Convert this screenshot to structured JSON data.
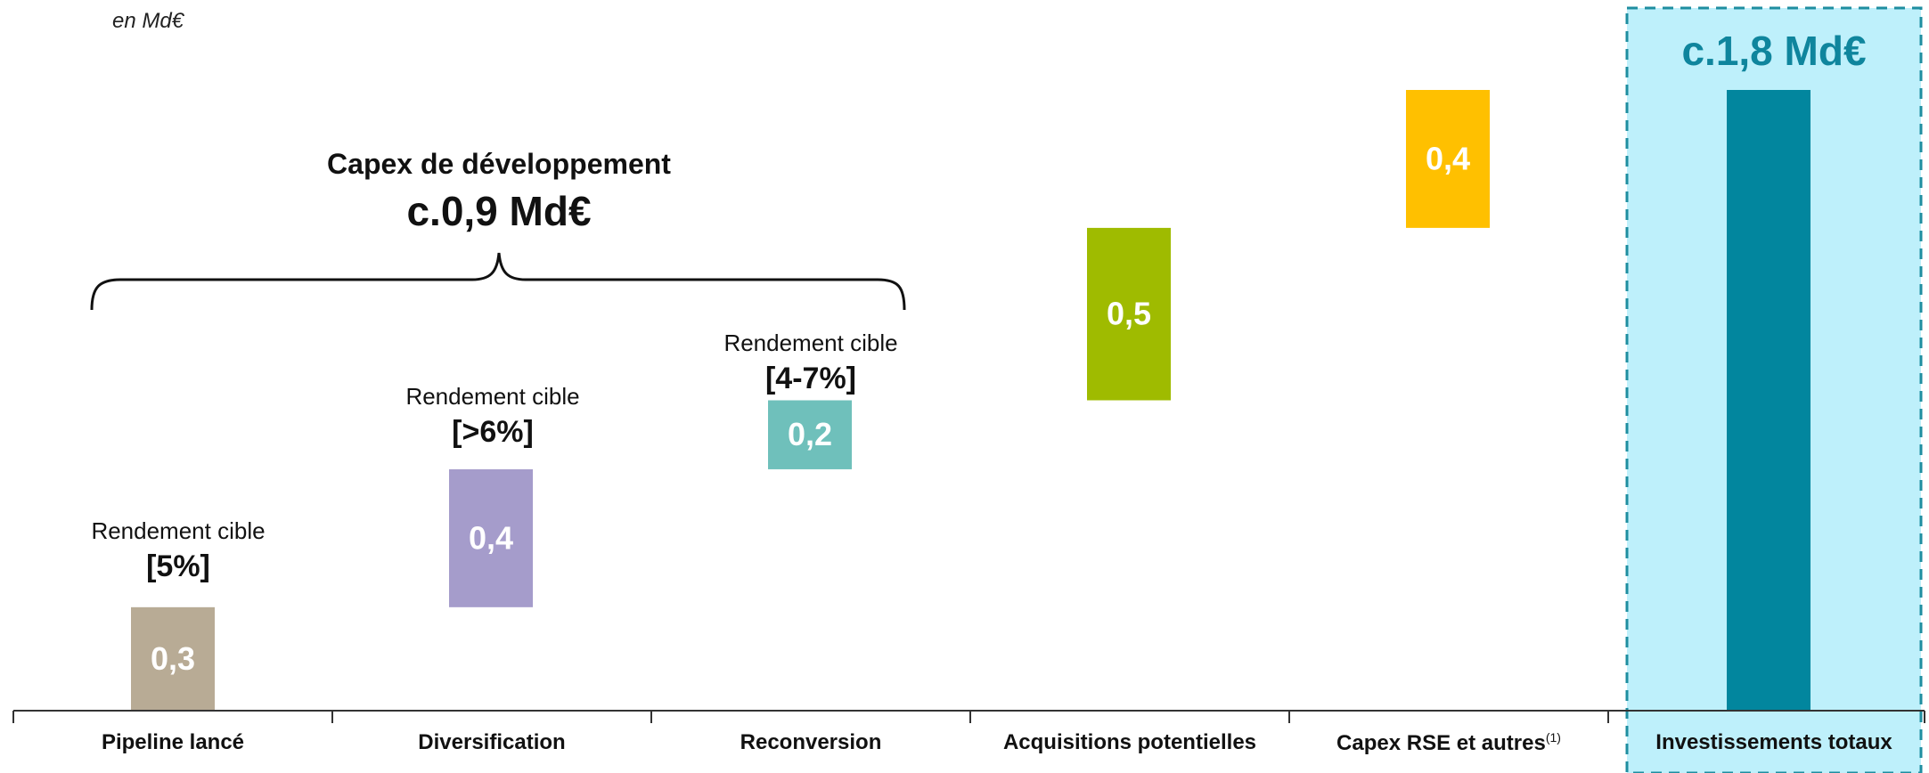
{
  "unit_label": "en Md€",
  "group": {
    "title": "Capex de développement",
    "total": "c.0,9 Md€"
  },
  "total_label": "c.1,8 Md€",
  "yields": [
    {
      "label": "Rendement cible",
      "value": "[5%]"
    },
    {
      "label": "Rendement cible",
      "value": "[>6%]"
    },
    {
      "label": "Rendement cible",
      "value": "[4-7%]"
    }
  ],
  "chart_data": {
    "type": "bar",
    "subtype": "waterfall",
    "unit": "en Md€",
    "categories": [
      "Pipeline lancé",
      "Diversification",
      "Reconversion",
      "Acquisitions potentielles",
      "Capex RSE et autres",
      "Investissements totaux"
    ],
    "footnote_marker": "(1)",
    "values": [
      0.3,
      0.4,
      0.2,
      0.5,
      0.4,
      1.8
    ],
    "value_labels": [
      "0,3",
      "0,4",
      "0,2",
      "0,5",
      "0,4",
      ""
    ],
    "bases": [
      0,
      0.3,
      0.7,
      0.9,
      1.4,
      0
    ],
    "colors": [
      "#b8ab95",
      "#a59ccb",
      "#6fc0bb",
      "#9fbb00",
      "#ffc000",
      "#02869e"
    ],
    "highlight_background": "#bef0fb",
    "highlight_border": "#1f8ea0",
    "ylim": [
      0,
      1.85
    ]
  }
}
